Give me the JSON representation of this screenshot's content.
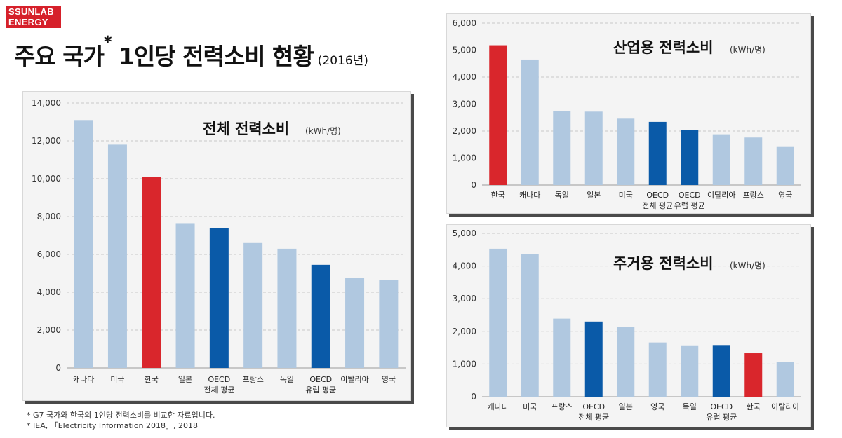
{
  "brand": {
    "line1": "SSUNLAB",
    "line2": "ENERGY"
  },
  "header": {
    "title": "주요 국가",
    "mark": "*",
    "title_rest": " 1인당 전력소비 현황",
    "year": "(2016년)"
  },
  "footnotes": [
    "* G7 국가와 한국의 1인당 전력소비를 비교한 자료입니다.",
    "* IEA, 「Electricity Information 2018」, 2018"
  ],
  "colors": {
    "default": "#b0c8e0",
    "korea": "#d9262c",
    "oecd": "#0a5aa8"
  },
  "chart_data": [
    {
      "type": "bar",
      "title": "전체 전력소비",
      "unit": "(kWh/명)",
      "categories": [
        "캐나다",
        "미국",
        "한국",
        "일본",
        "OECD\n전체 평균",
        "프랑스",
        "독일",
        "OECD\n유럽 평균",
        "이탈리아",
        "영국"
      ],
      "values": [
        13100,
        11800,
        10100,
        7650,
        7400,
        6600,
        6300,
        5450,
        4750,
        4650
      ],
      "bar_colors": [
        "default",
        "default",
        "korea",
        "default",
        "oecd",
        "default",
        "default",
        "oecd",
        "default",
        "default"
      ],
      "yticks": [
        "0",
        "2,000",
        "4,000",
        "6,000",
        "8,000",
        "10,000",
        "12,000",
        "14,000"
      ],
      "ylim": [
        0,
        14000
      ],
      "grid": true
    },
    {
      "type": "bar",
      "title": "산업용 전력소비",
      "unit": "(kWh/명)",
      "categories": [
        "한국",
        "캐나다",
        "독일",
        "일본",
        "미국",
        "OECD\n전체 평균",
        "OECD\n유럽 평균",
        "이탈리아",
        "프랑스",
        "영국"
      ],
      "values": [
        5180,
        4650,
        2750,
        2720,
        2460,
        2340,
        2040,
        1880,
        1760,
        1410
      ],
      "bar_colors": [
        "korea",
        "default",
        "default",
        "default",
        "default",
        "oecd",
        "oecd",
        "default",
        "default",
        "default"
      ],
      "yticks": [
        "0",
        "1,000",
        "2,000",
        "3,000",
        "4,000",
        "5,000",
        "6,000"
      ],
      "ylim": [
        0,
        6000
      ],
      "grid": true
    },
    {
      "type": "bar",
      "title": "주거용 전력소비",
      "unit": "(kWh/명)",
      "categories": [
        "캐나다",
        "미국",
        "프랑스",
        "OECD\n전체 평균",
        "일본",
        "영국",
        "독일",
        "OECD\n유럽 평균",
        "한국",
        "이탈리아"
      ],
      "values": [
        4530,
        4370,
        2390,
        2300,
        2130,
        1660,
        1550,
        1560,
        1330,
        1060
      ],
      "bar_colors": [
        "default",
        "default",
        "default",
        "oecd",
        "default",
        "default",
        "default",
        "oecd",
        "korea",
        "default"
      ],
      "yticks": [
        "0",
        "1,000",
        "2,000",
        "3,000",
        "4,000",
        "5,000"
      ],
      "ylim": [
        0,
        5000
      ],
      "grid": true
    }
  ]
}
